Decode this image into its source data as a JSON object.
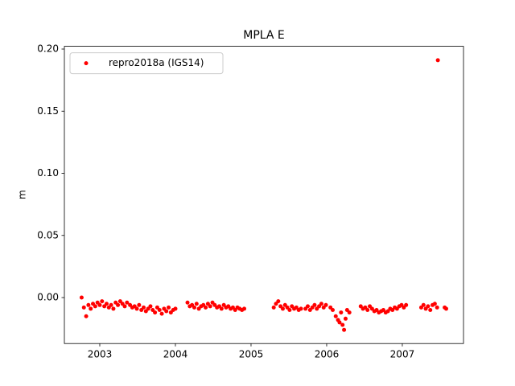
{
  "chart_data": {
    "type": "scatter",
    "title": "MPLA E",
    "ylabel": "m",
    "x": [
      2002.76,
      2002.79,
      2002.82,
      2002.85,
      2002.88,
      2002.91,
      2002.94,
      2002.97,
      2003.0,
      2003.03,
      2003.06,
      2003.09,
      2003.12,
      2003.15,
      2003.18,
      2003.21,
      2003.24,
      2003.27,
      2003.3,
      2003.33,
      2003.36,
      2003.4,
      2003.43,
      2003.46,
      2003.49,
      2003.52,
      2003.55,
      2003.58,
      2003.61,
      2003.64,
      2003.67,
      2003.7,
      2003.73,
      2003.76,
      2003.79,
      2003.82,
      2003.85,
      2003.88,
      2003.91,
      2003.94,
      2003.97,
      2004.0,
      2004.16,
      2004.19,
      2004.22,
      2004.25,
      2004.28,
      2004.31,
      2004.34,
      2004.37,
      2004.4,
      2004.43,
      2004.46,
      2004.49,
      2004.52,
      2004.55,
      2004.58,
      2004.61,
      2004.64,
      2004.67,
      2004.7,
      2004.73,
      2004.76,
      2004.79,
      2004.82,
      2004.85,
      2004.88,
      2004.91,
      2005.3,
      2005.33,
      2005.36,
      2005.39,
      2005.42,
      2005.45,
      2005.48,
      2005.51,
      2005.54,
      2005.57,
      2005.6,
      2005.63,
      2005.66,
      2005.72,
      2005.75,
      2005.78,
      2005.81,
      2005.84,
      2005.87,
      2005.9,
      2005.93,
      2005.96,
      2005.99,
      2006.05,
      2006.08,
      2006.12,
      2006.15,
      2006.17,
      2006.19,
      2006.21,
      2006.23,
      2006.25,
      2006.27,
      2006.3,
      2006.45,
      2006.48,
      2006.51,
      2006.54,
      2006.57,
      2006.6,
      2006.63,
      2006.66,
      2006.69,
      2006.72,
      2006.75,
      2006.78,
      2006.81,
      2006.84,
      2006.87,
      2006.9,
      2006.93,
      2006.96,
      2006.99,
      2007.02,
      2007.05,
      2007.25,
      2007.28,
      2007.31,
      2007.34,
      2007.37,
      2007.4,
      2007.43,
      2007.46,
      2007.47,
      2007.56,
      2007.58
    ],
    "series": [
      {
        "name": "repro2018a (IGS14)",
        "color": "#ff0000",
        "values": [
          0.0,
          -0.008,
          -0.015,
          -0.006,
          -0.009,
          -0.005,
          -0.007,
          -0.004,
          -0.006,
          -0.003,
          -0.007,
          -0.005,
          -0.008,
          -0.006,
          -0.009,
          -0.004,
          -0.006,
          -0.003,
          -0.005,
          -0.007,
          -0.004,
          -0.006,
          -0.008,
          -0.007,
          -0.009,
          -0.006,
          -0.01,
          -0.008,
          -0.011,
          -0.009,
          -0.007,
          -0.01,
          -0.012,
          -0.008,
          -0.01,
          -0.013,
          -0.009,
          -0.011,
          -0.008,
          -0.012,
          -0.01,
          -0.009,
          -0.004,
          -0.007,
          -0.006,
          -0.008,
          -0.005,
          -0.009,
          -0.007,
          -0.006,
          -0.008,
          -0.005,
          -0.007,
          -0.004,
          -0.006,
          -0.008,
          -0.007,
          -0.009,
          -0.006,
          -0.008,
          -0.007,
          -0.009,
          -0.008,
          -0.01,
          -0.008,
          -0.009,
          -0.01,
          -0.009,
          -0.008,
          -0.005,
          -0.003,
          -0.007,
          -0.009,
          -0.006,
          -0.008,
          -0.01,
          -0.007,
          -0.009,
          -0.008,
          -0.01,
          -0.009,
          -0.009,
          -0.007,
          -0.01,
          -0.008,
          -0.006,
          -0.009,
          -0.007,
          -0.005,
          -0.008,
          -0.006,
          -0.008,
          -0.01,
          -0.015,
          -0.018,
          -0.02,
          -0.012,
          -0.022,
          -0.026,
          -0.017,
          -0.01,
          -0.012,
          -0.007,
          -0.009,
          -0.008,
          -0.01,
          -0.007,
          -0.009,
          -0.011,
          -0.01,
          -0.012,
          -0.011,
          -0.01,
          -0.012,
          -0.011,
          -0.009,
          -0.01,
          -0.008,
          -0.009,
          -0.007,
          -0.006,
          -0.008,
          -0.006,
          -0.008,
          -0.006,
          -0.009,
          -0.007,
          -0.01,
          -0.006,
          -0.005,
          -0.008,
          0.191,
          -0.008,
          -0.009
        ]
      }
    ],
    "xlim": [
      2002.532,
      2007.809
    ],
    "xticks": [
      2003,
      2004,
      2005,
      2006,
      2007
    ],
    "ylim": [
      -0.037,
      0.2022
    ],
    "yticks": [
      {
        "value": 0,
        "label": "0.00"
      },
      {
        "value": 0.05,
        "label": "0.05"
      },
      {
        "value": 0.1,
        "label": "0.10"
      },
      {
        "value": 0.15,
        "label": "0.15"
      },
      {
        "value": 0.2,
        "label": "0.20"
      }
    ],
    "legend": "upper left"
  }
}
